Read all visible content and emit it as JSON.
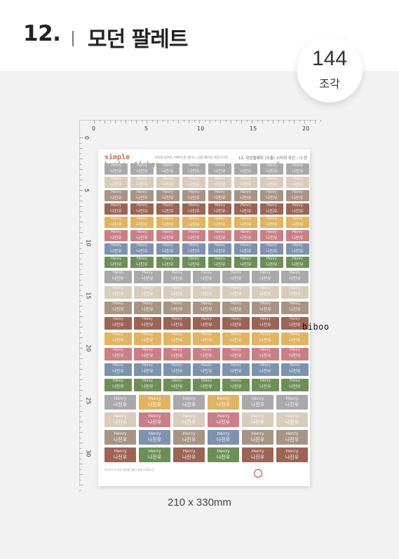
{
  "header": {
    "number": "12.",
    "name": "모던 팔레트"
  },
  "badge": {
    "count": "144",
    "unit": "조각"
  },
  "ruler": {
    "top_labels": [
      "0",
      "5",
      "10",
      "15",
      "20"
    ],
    "left_labels": [
      "0",
      "5",
      "10",
      "15",
      "20",
      "25",
      "30"
    ]
  },
  "sheet": {
    "brand_line1": "simple",
    "brand_line2": "basic sticker",
    "tagline": "어디에 붙여도 이쁘게 잘 붙어는 심플 베이직 네임스티커",
    "code": "12. 모던팔레트 (두줄)",
    "code2": "스티커 주인 : 나 진 우",
    "sticker_english": "Henry",
    "sticker_korean": "나진우",
    "colors": [
      "#a9a9ab",
      "#d9ccbd",
      "#a89484",
      "#9b6456",
      "#dfb462",
      "#c97f86",
      "#7e92ae",
      "#6d8f57"
    ],
    "footer_text": "안전하고 더 좋은 제품을 만들기 위해 노력합니다"
  },
  "watermark": "biboo",
  "size_label": "210 x 330mm"
}
